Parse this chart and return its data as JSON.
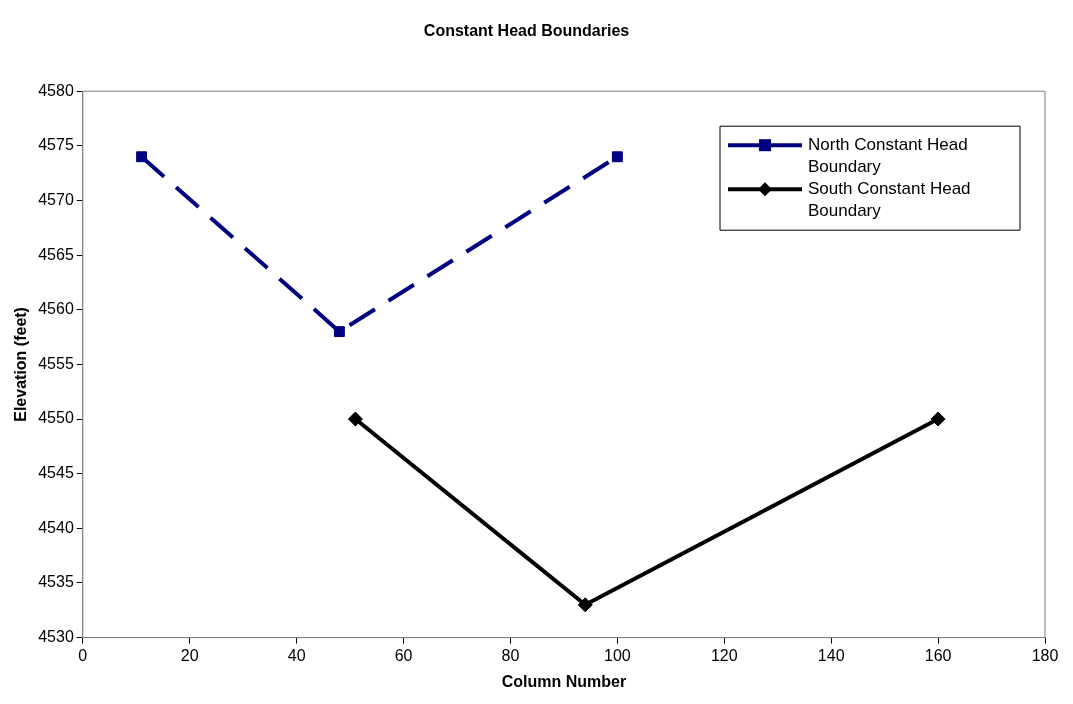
{
  "chart_data": {
    "type": "line",
    "title": "Constant Head Boundaries",
    "xlabel": "Column Number",
    "ylabel": "Elevation (feet)",
    "xlim": [
      0,
      180
    ],
    "xticks": [
      0,
      20,
      40,
      60,
      80,
      100,
      120,
      140,
      160,
      180
    ],
    "ylim": [
      4530,
      4580
    ],
    "yticks": [
      4530,
      4535,
      4540,
      4545,
      4550,
      4555,
      4560,
      4565,
      4570,
      4575,
      4580
    ],
    "grid": false,
    "legend": "top right",
    "series": [
      {
        "name": "North Constant Head Boundary",
        "color": "#000080",
        "x": [
          11,
          48,
          100
        ],
        "values": [
          4574,
          4558,
          4574
        ],
        "marker": "square",
        "line_style": "dashed"
      },
      {
        "name": "South Constant Head Boundary",
        "color": "#000000",
        "x": [
          51,
          94,
          160
        ],
        "values": [
          4550,
          4533,
          4550
        ],
        "marker": "diamond",
        "line_style": "solid"
      }
    ]
  }
}
